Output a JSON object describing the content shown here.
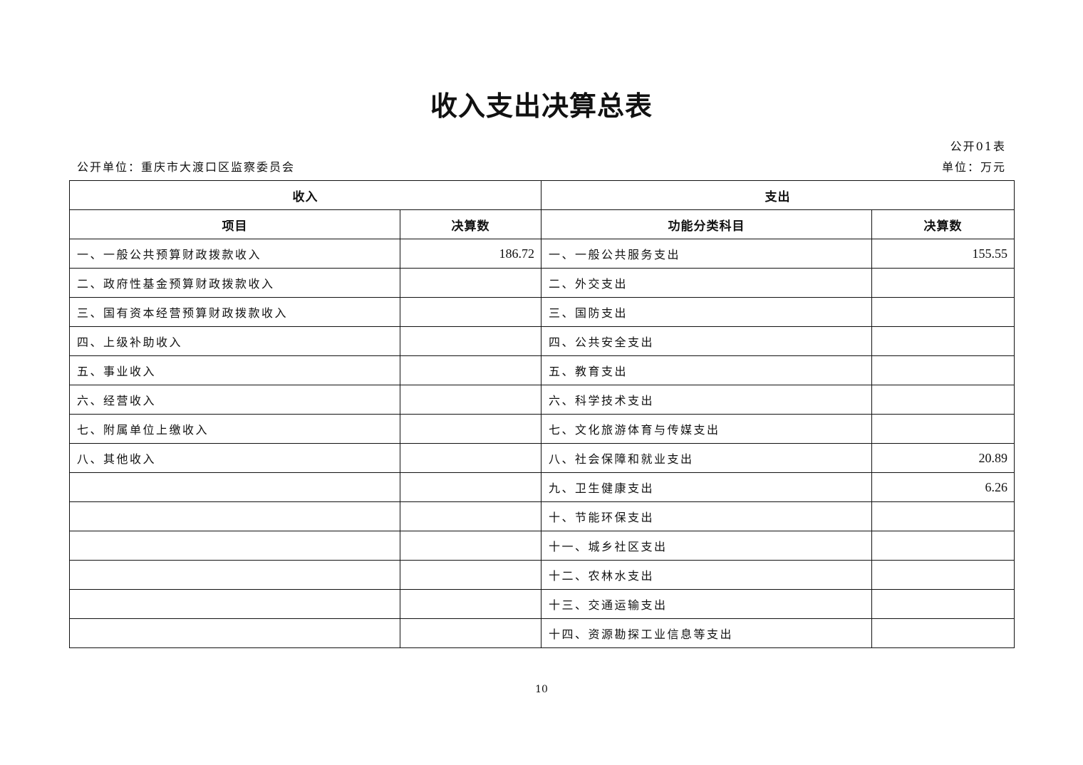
{
  "title": "收入支出决算总表",
  "form_no": "公开01表",
  "org": "公开单位：重庆市大渡口区监察委员会",
  "unit": "单位：万元",
  "table": {
    "income_header": "收入",
    "expense_header": "支出",
    "income_item_col": "项目",
    "income_amount_col": "决算数",
    "expense_item_col": "功能分类科目",
    "expense_amount_col": "决算数",
    "rows": [
      {
        "income_item": "一、一般公共预算财政拨款收入",
        "income_amount": "186.72",
        "expense_item": "一、一般公共服务支出",
        "expense_amount": "155.55"
      },
      {
        "income_item": "二、政府性基金预算财政拨款收入",
        "income_amount": "",
        "expense_item": "二、外交支出",
        "expense_amount": ""
      },
      {
        "income_item": "三、国有资本经营预算财政拨款收入",
        "income_amount": "",
        "expense_item": "三、国防支出",
        "expense_amount": ""
      },
      {
        "income_item": "四、上级补助收入",
        "income_amount": "",
        "expense_item": "四、公共安全支出",
        "expense_amount": ""
      },
      {
        "income_item": "五、事业收入",
        "income_amount": "",
        "expense_item": "五、教育支出",
        "expense_amount": ""
      },
      {
        "income_item": "六、经营收入",
        "income_amount": "",
        "expense_item": "六、科学技术支出",
        "expense_amount": ""
      },
      {
        "income_item": "七、附属单位上缴收入",
        "income_amount": "",
        "expense_item": "七、文化旅游体育与传媒支出",
        "expense_amount": ""
      },
      {
        "income_item": "八、其他收入",
        "income_amount": "",
        "expense_item": "八、社会保障和就业支出",
        "expense_amount": "20.89"
      },
      {
        "income_item": "",
        "income_amount": "",
        "expense_item": "九、卫生健康支出",
        "expense_amount": "6.26"
      },
      {
        "income_item": "",
        "income_amount": "",
        "expense_item": "十、节能环保支出",
        "expense_amount": ""
      },
      {
        "income_item": "",
        "income_amount": "",
        "expense_item": "十一、城乡社区支出",
        "expense_amount": ""
      },
      {
        "income_item": "",
        "income_amount": "",
        "expense_item": "十二、农林水支出",
        "expense_amount": ""
      },
      {
        "income_item": "",
        "income_amount": "",
        "expense_item": "十三、交通运输支出",
        "expense_amount": ""
      },
      {
        "income_item": "",
        "income_amount": "",
        "expense_item": "十四、资源勘探工业信息等支出",
        "expense_amount": ""
      }
    ]
  },
  "page_number": "10"
}
